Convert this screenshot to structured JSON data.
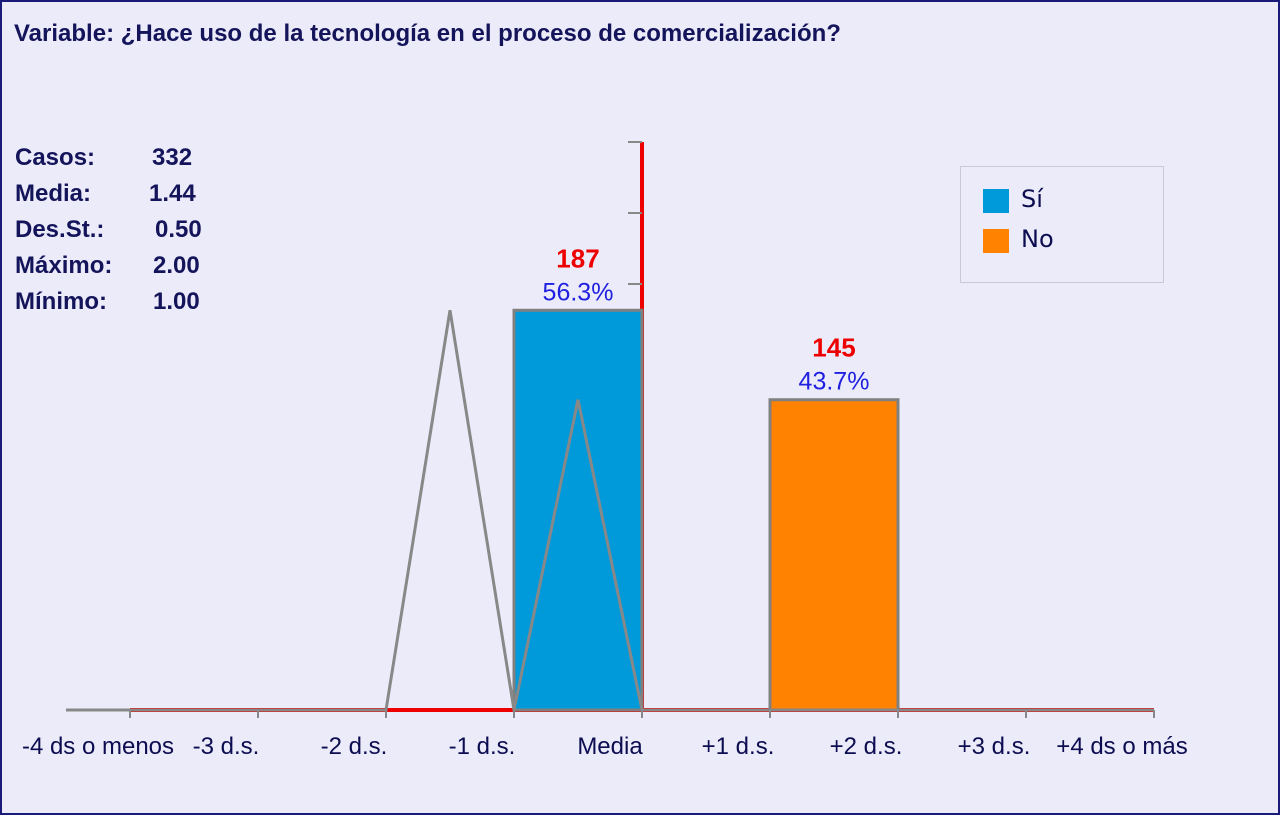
{
  "chart_data": {
    "type": "bar",
    "title": "Variable: ¿Hace uso de la tecnología en el proceso de comercialización?",
    "stats": [
      {
        "label": "Casos:",
        "value": "332"
      },
      {
        "label": "Media:",
        "value": "1.44"
      },
      {
        "label": "Des.St.:",
        "value": "0.50"
      },
      {
        "label": "Máximo:",
        "value": "2.00"
      },
      {
        "label": "Mínimo:",
        "value": "1.00"
      }
    ],
    "x_ticks": [
      "-4 ds o menos",
      "-3 d.s.",
      "-2 d.s.",
      "-1 d.s.",
      "Media",
      "+1 d.s.",
      "+2 d.s.",
      "+3 d.s.",
      "+4 ds o más"
    ],
    "series": [
      {
        "name": "Sí",
        "count": 187,
        "percent": 56.3,
        "count_label": "187",
        "percent_label": "56.3%",
        "color": "#009ada",
        "bin_from": "-1 d.s.",
        "bin_to": "Media"
      },
      {
        "name": "No",
        "count": 145,
        "percent": 43.7,
        "count_label": "145",
        "percent_label": "43.7%",
        "color": "#ff8200",
        "bin_from": "+1 d.s.",
        "bin_to": "+2 d.s."
      }
    ],
    "ylim": [
      0,
      80
    ],
    "y_tick_step": 10,
    "polygon_y": [
      0,
      0,
      0,
      0,
      0,
      0,
      56.3,
      0,
      43.7,
      0,
      0,
      0,
      0,
      0,
      0,
      0,
      0,
      0
    ],
    "colors": {
      "axis": "#ee0000",
      "polygon": "#888888",
      "bar_border": "#808080",
      "count_label": "#ee0000",
      "percent_label": "#2020e0"
    },
    "legend_position": "top-right",
    "grid": false
  }
}
